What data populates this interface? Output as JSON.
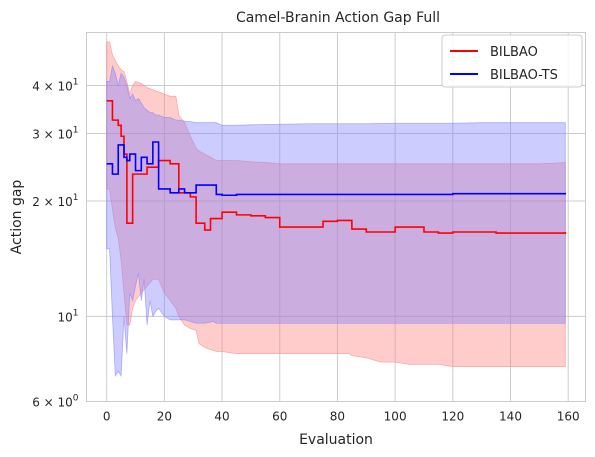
{
  "chart_data": {
    "type": "line",
    "title": "Camel-Branin Action Gap Full",
    "xlabel": "Evaluation",
    "ylabel": "Action gap",
    "xlim": [
      -7,
      166
    ],
    "ylim": [
      6,
      55
    ],
    "yscale": "log",
    "grid": true,
    "legend_position": "top-right",
    "x_ticks": [
      {
        "value": 0,
        "label": "0"
      },
      {
        "value": 20,
        "label": "20"
      },
      {
        "value": 40,
        "label": "40"
      },
      {
        "value": 60,
        "label": "60"
      },
      {
        "value": 80,
        "label": "80"
      },
      {
        "value": 100,
        "label": "100"
      },
      {
        "value": 120,
        "label": "120"
      },
      {
        "value": 140,
        "label": "140"
      },
      {
        "value": 160,
        "label": "160"
      }
    ],
    "y_ticks": [
      {
        "value": 6,
        "base": "6 × 10",
        "exp": "0"
      },
      {
        "value": 10,
        "base": "10",
        "exp": "1"
      },
      {
        "value": 20,
        "base": "2 × 10",
        "exp": "1"
      },
      {
        "value": 30,
        "base": "3 × 10",
        "exp": "1"
      },
      {
        "value": 40,
        "base": "4 × 10",
        "exp": "1"
      }
    ],
    "series": [
      {
        "name": "BILBAO",
        "color": "#ff0000",
        "band_color": "#ff8080",
        "x": [
          0,
          1,
          2,
          3,
          4,
          5,
          6,
          7,
          8,
          9,
          10,
          12,
          14,
          16,
          18,
          20,
          22,
          24,
          25,
          27,
          29,
          31,
          32,
          34,
          36,
          38,
          40,
          45,
          50,
          55,
          60,
          65,
          70,
          75,
          80,
          84,
          85,
          90,
          95,
          100,
          105,
          110,
          115,
          120,
          125,
          130,
          135,
          140,
          150,
          159
        ],
        "mean": [
          36.5,
          36.5,
          32.5,
          32.5,
          31.5,
          29.5,
          26.5,
          17.5,
          17.5,
          23.5,
          23.5,
          23.5,
          24.5,
          24.5,
          25.5,
          25.5,
          25.0,
          25.0,
          21.0,
          21.0,
          20.5,
          17.5,
          17.5,
          16.8,
          18.0,
          18.0,
          18.7,
          18.4,
          18.3,
          18.1,
          17.1,
          17.1,
          17.1,
          17.7,
          17.8,
          17.8,
          16.9,
          16.6,
          16.6,
          17.1,
          17.1,
          16.6,
          16.5,
          16.6,
          16.6,
          16.6,
          16.5,
          16.5,
          16.5,
          16.6
        ],
        "upper": [
          52.0,
          52.0,
          48.0,
          46.5,
          45.0,
          44.0,
          43.5,
          41.0,
          38.0,
          40.0,
          41.0,
          40.5,
          39.5,
          39.0,
          38.5,
          38.0,
          37.5,
          37.5,
          33.5,
          32.0,
          29.5,
          27.5,
          27.0,
          26.5,
          26.0,
          25.5,
          25.5,
          25.5,
          25.3,
          25.2,
          25.0,
          25.0,
          25.0,
          25.0,
          25.0,
          25.0,
          25.0,
          25.0,
          25.0,
          25.0,
          25.0,
          25.0,
          25.0,
          25.0,
          25.0,
          25.0,
          25.0,
          25.0,
          25.0,
          25.2
        ],
        "lower": [
          21.5,
          21.5,
          19.0,
          17.0,
          16.0,
          14.0,
          11.5,
          9.5,
          9.5,
          10.5,
          11.0,
          11.5,
          12.0,
          12.5,
          12.5,
          11.5,
          11.0,
          10.5,
          10.0,
          9.5,
          9.3,
          9.2,
          8.5,
          8.3,
          8.2,
          8.1,
          8.1,
          8.0,
          8.0,
          8.0,
          8.0,
          8.0,
          8.0,
          8.0,
          8.0,
          8.0,
          7.9,
          7.8,
          7.6,
          7.6,
          7.5,
          7.5,
          7.5,
          7.4,
          7.4,
          7.4,
          7.4,
          7.4,
          7.4,
          7.4
        ]
      },
      {
        "name": "BILBAO-TS",
        "color": "#0000ff",
        "band_color": "#8080ff",
        "x": [
          0,
          1,
          2,
          3,
          4,
          5,
          6,
          7,
          8,
          9,
          10,
          11,
          12,
          13,
          14,
          15,
          16,
          17,
          18,
          20,
          22,
          24,
          25,
          27,
          29,
          31,
          34,
          37,
          38,
          40,
          45,
          50,
          60,
          70,
          80,
          90,
          100,
          110,
          120,
          130,
          140,
          150,
          159
        ],
        "mean": [
          25.0,
          25.0,
          23.5,
          23.5,
          28.0,
          28.0,
          26.0,
          25.5,
          26.5,
          26.5,
          24.0,
          24.0,
          26.0,
          26.0,
          25.0,
          25.0,
          28.5,
          28.5,
          21.5,
          21.5,
          21.0,
          21.0,
          21.5,
          21.0,
          21.0,
          22.0,
          22.0,
          22.0,
          20.8,
          20.7,
          20.8,
          20.8,
          20.8,
          20.8,
          20.8,
          20.8,
          20.8,
          20.8,
          20.9,
          20.9,
          20.9,
          20.9,
          21.0
        ],
        "upper": [
          41.0,
          41.0,
          45.0,
          43.0,
          40.0,
          43.0,
          42.0,
          40.0,
          37.0,
          38.0,
          36.5,
          37.0,
          36.0,
          35.0,
          34.5,
          34.0,
          34.0,
          33.5,
          33.5,
          33.0,
          33.0,
          32.5,
          32.5,
          32.3,
          32.2,
          32.0,
          32.0,
          32.0,
          32.0,
          31.5,
          31.5,
          31.6,
          31.7,
          31.8,
          31.8,
          31.8,
          31.9,
          31.9,
          31.9,
          32.0,
          32.0,
          32.0,
          32.0
        ],
        "lower": [
          15.0,
          15.0,
          10.0,
          7.0,
          7.2,
          7.0,
          10.0,
          8.0,
          11.5,
          11.0,
          12.0,
          13.0,
          11.0,
          12.5,
          9.5,
          11.0,
          10.0,
          10.3,
          10.5,
          10.0,
          9.8,
          9.8,
          9.8,
          9.8,
          9.7,
          9.6,
          9.6,
          9.7,
          9.6,
          9.6,
          9.6,
          9.6,
          9.6,
          9.6,
          9.6,
          9.6,
          9.6,
          9.6,
          9.6,
          9.6,
          9.6,
          9.6,
          9.6
        ]
      }
    ]
  }
}
